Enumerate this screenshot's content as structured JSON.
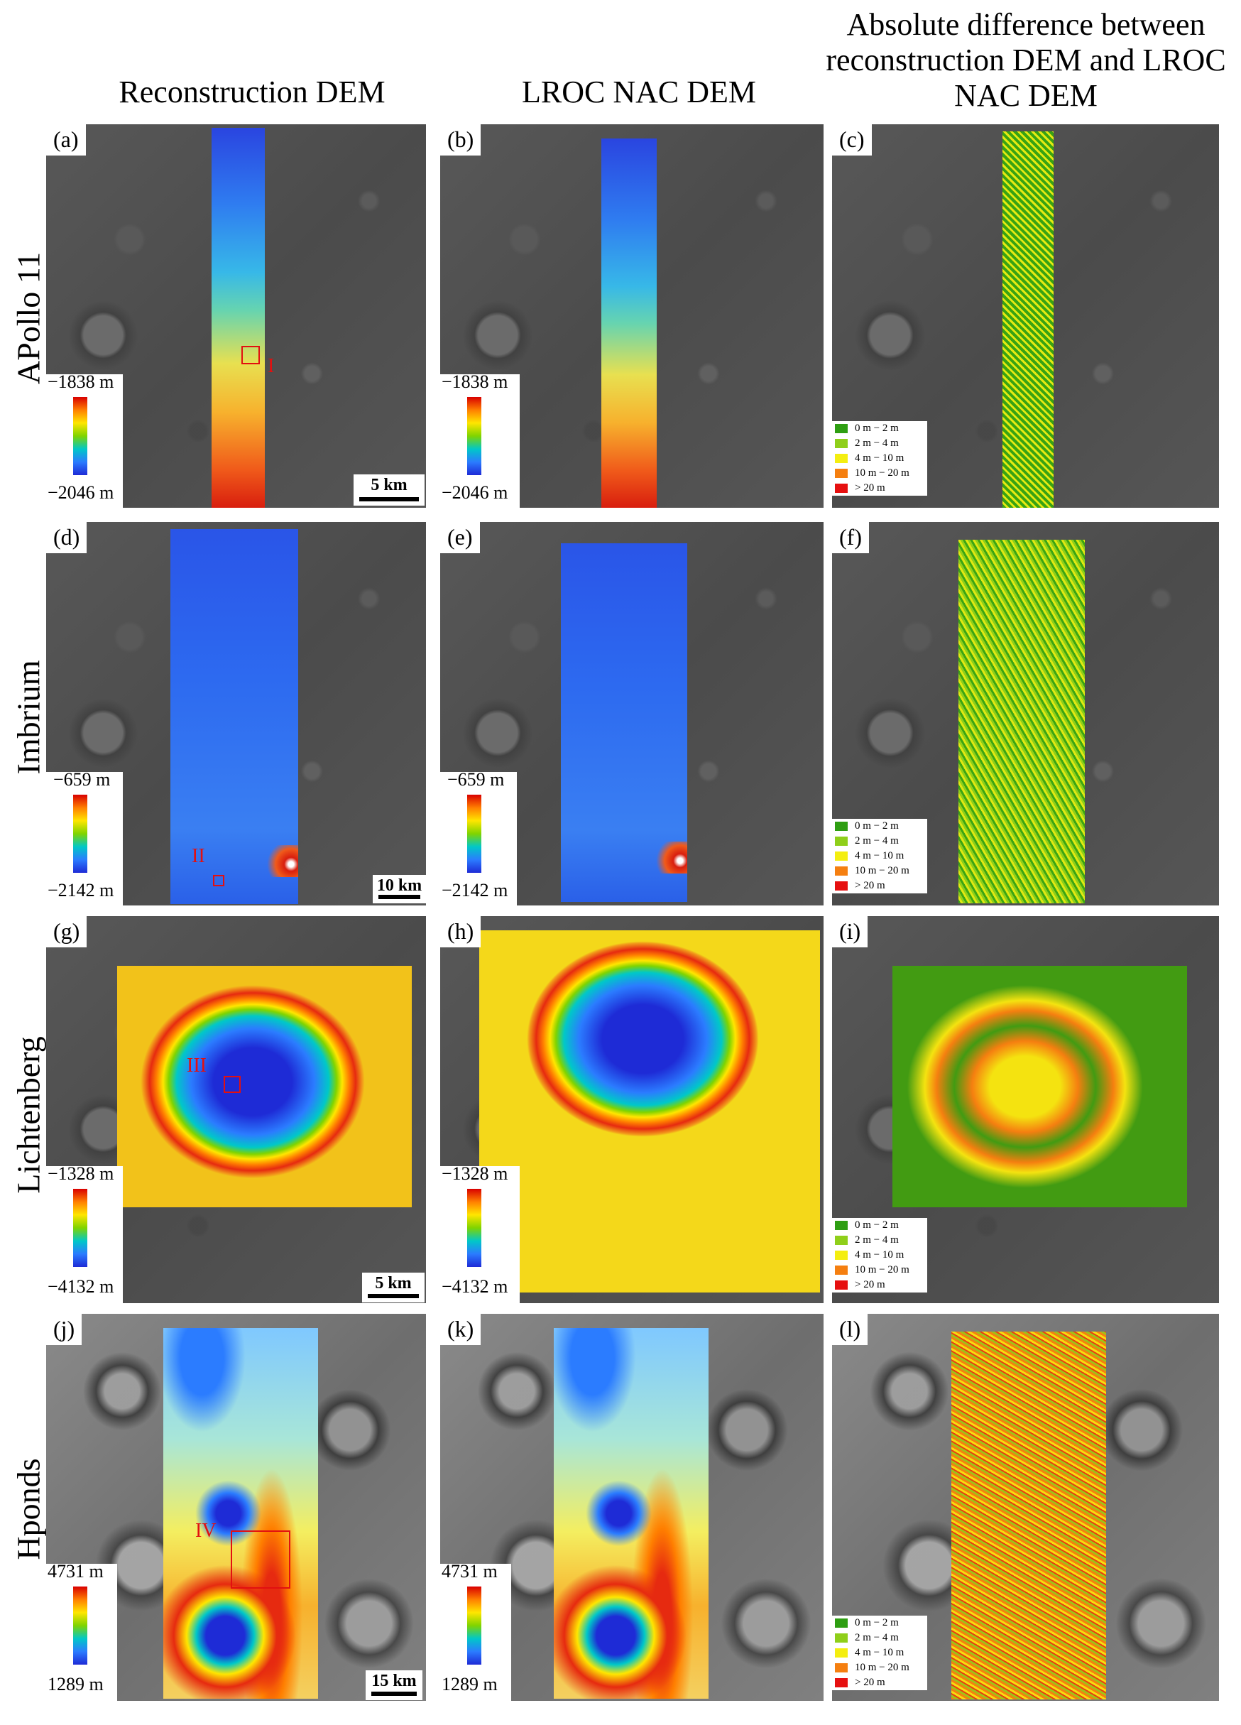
{
  "column_titles": [
    "Reconstruction DEM",
    "LROC NAC DEM",
    "Absolute difference between reconstruction DEM and LROC NAC DEM"
  ],
  "rows": [
    {
      "label": "APollo 11",
      "panels": [
        "(a)",
        "(b)",
        "(c)"
      ],
      "elev_max": "−1838 m",
      "elev_min": "−2046 m",
      "scale": "5 km",
      "roi": "I"
    },
    {
      "label": "Imbrium",
      "panels": [
        "(d)",
        "(e)",
        "(f)"
      ],
      "elev_max": "−659 m",
      "elev_min": "−2142 m",
      "scale": "10 km",
      "roi": "II"
    },
    {
      "label": "Lichtenberg",
      "panels": [
        "(g)",
        "(h)",
        "(i)"
      ],
      "elev_max": "−1328 m",
      "elev_min": "−4132 m",
      "scale": "5 km",
      "roi": "III"
    },
    {
      "label": "Hponds",
      "panels": [
        "(j)",
        "(k)",
        "(l)"
      ],
      "elev_max": "4731 m",
      "elev_min": "1289 m",
      "scale": "15 km",
      "roi": "IV"
    }
  ],
  "diff_legend": [
    {
      "label": "0 m − 2 m",
      "color": "#2e9e12"
    },
    {
      "label": "2 m − 4 m",
      "color": "#8fcf1a"
    },
    {
      "label": "4 m − 10 m",
      "color": "#f4ee10"
    },
    {
      "label": "10 m − 20 m",
      "color": "#f57f10"
    },
    {
      "label": "> 20 m",
      "color": "#e61010"
    }
  ]
}
